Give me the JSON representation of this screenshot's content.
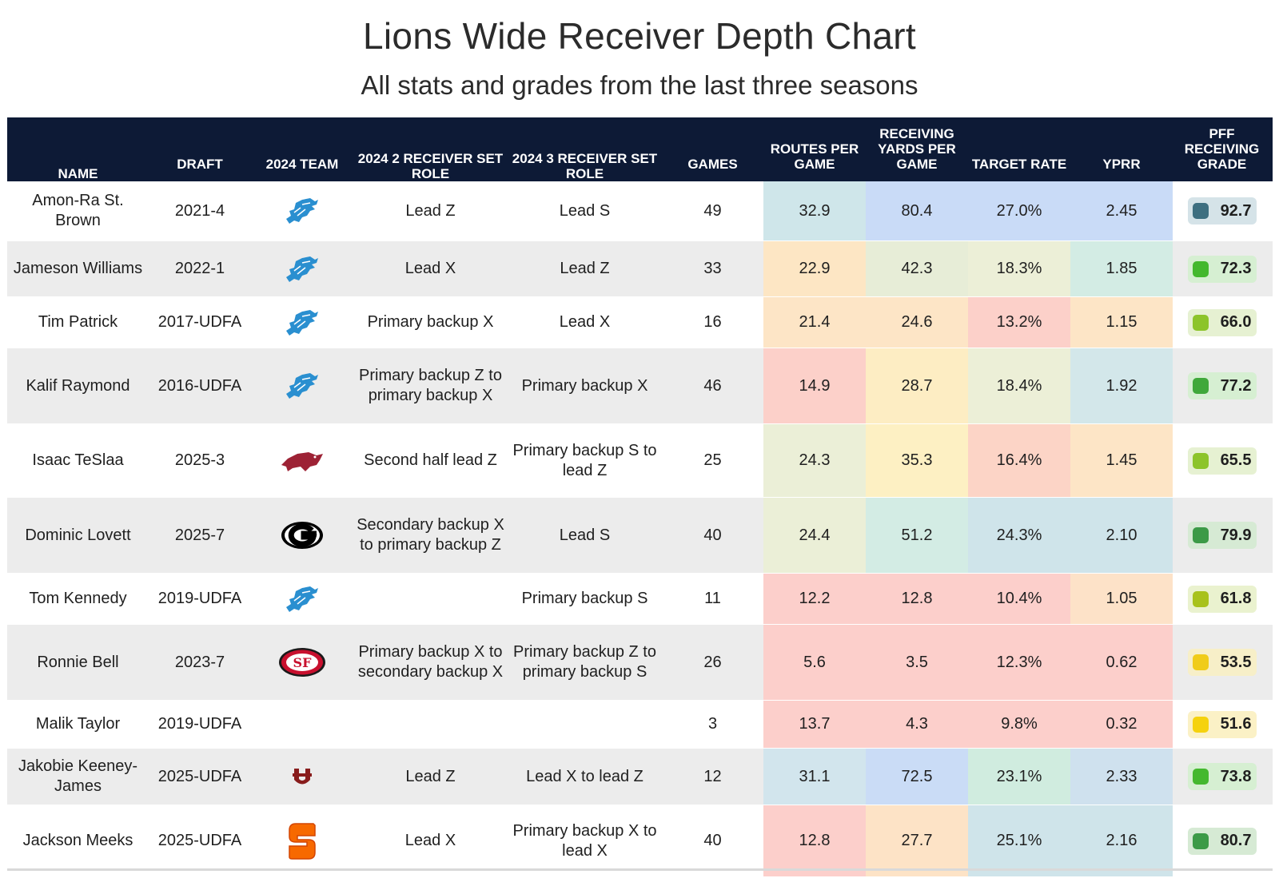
{
  "header": {
    "title": "Lions Wide Receiver Depth Chart",
    "subtitle": "All stats and grades from the last three seasons"
  },
  "columns": {
    "name": "NAME",
    "draft": "DRAFT",
    "team": "2024 TEAM",
    "role2": "2024 2 RECEIVER SET ROLE",
    "role3": "2024 3 RECEIVER SET ROLE",
    "games": "GAMES",
    "routes": "ROUTES PER GAME",
    "yards": "RECEIVING YARDS PER GAME",
    "target": "TARGET RATE",
    "yprr": "YPRR",
    "grade": "PFF RECEIVING GRADE"
  },
  "rows": [
    {
      "name": "Amon-Ra St. Brown",
      "draft": "2021-4",
      "team_icon": "lions-logo-icon",
      "role2": "Lead Z",
      "role3": "Lead S",
      "games": "49",
      "routes": "32.9",
      "yards": "80.4",
      "target": "27.0%",
      "yprr": "2.45",
      "grade": "92.7",
      "colors": {
        "routes": "#cfe6ea",
        "yards": "#c9dbf7",
        "target": "#c9dbf7",
        "yprr": "#c9dbf7",
        "grade_bg": "#d5e3e8",
        "grade_dot": "#3e6f80"
      }
    },
    {
      "name": "Jameson Williams",
      "draft": "2022-1",
      "team_icon": "lions-logo-icon",
      "role2": "Lead X",
      "role3": "Lead Z",
      "games": "33",
      "routes": "22.9",
      "yards": "42.3",
      "target": "18.3%",
      "yprr": "1.85",
      "grade": "72.3",
      "colors": {
        "routes": "#fde6c4",
        "yards": "#e7edd7",
        "target": "#ecefd7",
        "yprr": "#d3ece4",
        "grade_bg": "#d6efd2",
        "grade_dot": "#44b82e"
      }
    },
    {
      "name": "Tim Patrick",
      "draft": "2017-UDFA",
      "team_icon": "lions-logo-icon",
      "role2": "Primary backup X",
      "role3": "Lead X",
      "games": "16",
      "routes": "21.4",
      "yards": "24.6",
      "target": "13.2%",
      "yprr": "1.15",
      "grade": "66.0",
      "colors": {
        "routes": "#fde5c6",
        "yards": "#fde5c6",
        "target": "#fcd0c9",
        "yprr": "#fde5c6",
        "grade_bg": "#e6f1d2",
        "grade_dot": "#8cc42a"
      }
    },
    {
      "name": "Kalif Raymond",
      "draft": "2016-UDFA",
      "team_icon": "lions-logo-icon",
      "role2": "Primary backup Z to primary backup X",
      "role3": "Primary backup X",
      "games": "46",
      "routes": "14.9",
      "yards": "28.7",
      "target": "18.4%",
      "yprr": "1.92",
      "grade": "77.2",
      "colors": {
        "routes": "#fcd0c9",
        "yards": "#fdedc3",
        "target": "#ecefd7",
        "yprr": "#d3e7ea",
        "grade_bg": "#d6efd2",
        "grade_dot": "#3fa83a"
      }
    },
    {
      "name": "Isaac TeSlaa",
      "draft": "2025-3",
      "team_icon": "arkansas-razorback-icon",
      "role2": "Second half lead Z",
      "role3": "Primary backup S to lead Z",
      "games": "25",
      "routes": "24.3",
      "yards": "35.3",
      "target": "16.4%",
      "yprr": "1.45",
      "grade": "65.5",
      "colors": {
        "routes": "#ebefd7",
        "yards": "#fdf0c3",
        "target": "#fcd4c6",
        "yprr": "#fde5c6",
        "grade_bg": "#e6f1d2",
        "grade_dot": "#8cc42a"
      }
    },
    {
      "name": "Dominic Lovett",
      "draft": "2025-7",
      "team_icon": "georgia-g-icon",
      "role2": "Secondary backup X to primary backup Z",
      "role3": "Lead S",
      "games": "40",
      "routes": "24.4",
      "yards": "51.2",
      "target": "24.3%",
      "yprr": "2.10",
      "grade": "79.9",
      "colors": {
        "routes": "#ebefd7",
        "yards": "#d3ece4",
        "target": "#cfe4ea",
        "yprr": "#cfe4ea",
        "grade_bg": "#d6ead4",
        "grade_dot": "#3c9a47"
      }
    },
    {
      "name": "Tom Kennedy",
      "draft": "2019-UDFA",
      "team_icon": "lions-logo-icon",
      "role2": "",
      "role3": "Primary backup S",
      "games": "11",
      "routes": "12.2",
      "yards": "12.8",
      "target": "10.4%",
      "yprr": "1.05",
      "grade": "61.8",
      "colors": {
        "routes": "#fccfcb",
        "yards": "#fccfcb",
        "target": "#fccfcb",
        "yprr": "#fde2c8",
        "grade_bg": "#eaf2cf",
        "grade_dot": "#a8c21c"
      }
    },
    {
      "name": "Ronnie Bell",
      "draft": "2023-7",
      "team_icon": "49ers-logo-icon",
      "role2": "Primary backup X to secondary backup X",
      "role3": "Primary backup Z to primary backup S",
      "games": "26",
      "routes": "5.6",
      "yards": "3.5",
      "target": "12.3%",
      "yprr": "0.62",
      "grade": "53.5",
      "colors": {
        "routes": "#fccfcb",
        "yards": "#fccfcb",
        "target": "#fccfcb",
        "yprr": "#fccfcb",
        "grade_bg": "#f7efc8",
        "grade_dot": "#f0cc1a"
      }
    },
    {
      "name": "Malik Taylor",
      "draft": "2019-UDFA",
      "team_icon": "",
      "role2": "",
      "role3": "",
      "games": "3",
      "routes": "13.7",
      "yards": "4.3",
      "target": "9.8%",
      "yprr": "0.32",
      "grade": "51.6",
      "colors": {
        "routes": "#fccfcb",
        "yards": "#fccfcb",
        "target": "#fccfcb",
        "yprr": "#fccfcb",
        "grade_bg": "#fbf1c6",
        "grade_dot": "#f5d20e"
      }
    },
    {
      "name": "Jakobie Keeney-James",
      "draft": "2025-UDFA",
      "team_icon": "umass-logo-icon",
      "role2": "Lead Z",
      "role3": "Lead X to lead Z",
      "games": "12",
      "routes": "31.1",
      "yards": "72.5",
      "target": "23.1%",
      "yprr": "2.33",
      "grade": "73.8",
      "colors": {
        "routes": "#d2e5ed",
        "yards": "#cadcf6",
        "target": "#d0ecdf",
        "yprr": "#cfe1ee",
        "grade_bg": "#d6efd2",
        "grade_dot": "#44b82e"
      }
    },
    {
      "name": "Jackson Meeks",
      "draft": "2025-UDFA",
      "team_icon": "syracuse-s-icon",
      "role2": "Lead X",
      "role3": "Primary backup X to lead X",
      "games": "40",
      "routes": "12.8",
      "yards": "27.7",
      "target": "25.1%",
      "yprr": "2.16",
      "grade": "80.7",
      "colors": {
        "routes": "#fccfcb",
        "yards": "#fde3c6",
        "target": "#cfe4ea",
        "yprr": "#cfe4ea",
        "grade_bg": "#d6ead4",
        "grade_dot": "#3c9a47"
      }
    }
  ]
}
